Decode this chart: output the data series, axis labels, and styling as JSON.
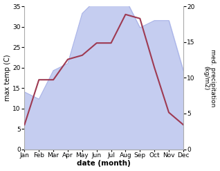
{
  "months": [
    "Jan",
    "Feb",
    "Mar",
    "Apr",
    "May",
    "Jun",
    "Jul",
    "Aug",
    "Sep",
    "Oct",
    "Nov",
    "Dec"
  ],
  "temperature": [
    6,
    17,
    17,
    22,
    23,
    26,
    26,
    33,
    32,
    20,
    9,
    6
  ],
  "precipitation": [
    8,
    7,
    11,
    12,
    19,
    21,
    21,
    21,
    17,
    18,
    18,
    11
  ],
  "temp_color": "#9e3a52",
  "precip_fill_color": "#c5cdf0",
  "precip_line_color": "#aab4e8",
  "xlabel": "date (month)",
  "ylabel_left": "max temp (C)",
  "ylabel_right": "med. precipitation\n(kg/m2)",
  "ylim_left": [
    0,
    35
  ],
  "ylim_right": [
    0,
    20
  ],
  "yticks_left": [
    0,
    5,
    10,
    15,
    20,
    25,
    30,
    35
  ],
  "yticks_right": [
    0,
    5,
    10,
    15,
    20
  ],
  "bg_color": "#ffffff",
  "spine_color": "#aaaaaa",
  "tick_color": "#555555"
}
